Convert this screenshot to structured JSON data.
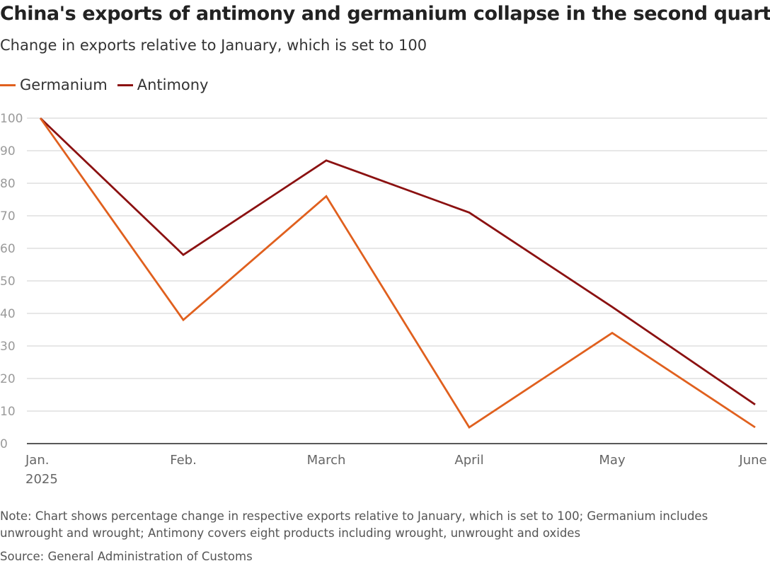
{
  "chart_data": {
    "type": "line",
    "title": "China's exports of antimony and germanium collapse in the second quarter",
    "subtitle": "Change in exports relative to January, which is set to 100",
    "categories": [
      "Jan.\n2025",
      "Feb.",
      "March",
      "April",
      "May",
      "June"
    ],
    "ylim": [
      0,
      100
    ],
    "yticks": [
      0,
      10,
      20,
      30,
      40,
      50,
      60,
      70,
      80,
      90,
      100
    ],
    "grid": true,
    "legend_position": "top-left",
    "series": [
      {
        "name": "Germanium",
        "color": "#e0601e",
        "values": [
          100,
          38,
          76,
          5,
          34,
          5
        ]
      },
      {
        "name": "Antimony",
        "color": "#8b1111",
        "values": [
          100,
          58,
          87,
          71,
          42,
          12
        ]
      }
    ],
    "note": "Note: Chart shows percentage change in respective exports relative to January, which is set to 100; Germanium includes unwrought and wrought; Antimony covers eight products including wrought, unwrought and oxides",
    "source": "Source: General Administration of Customs"
  }
}
